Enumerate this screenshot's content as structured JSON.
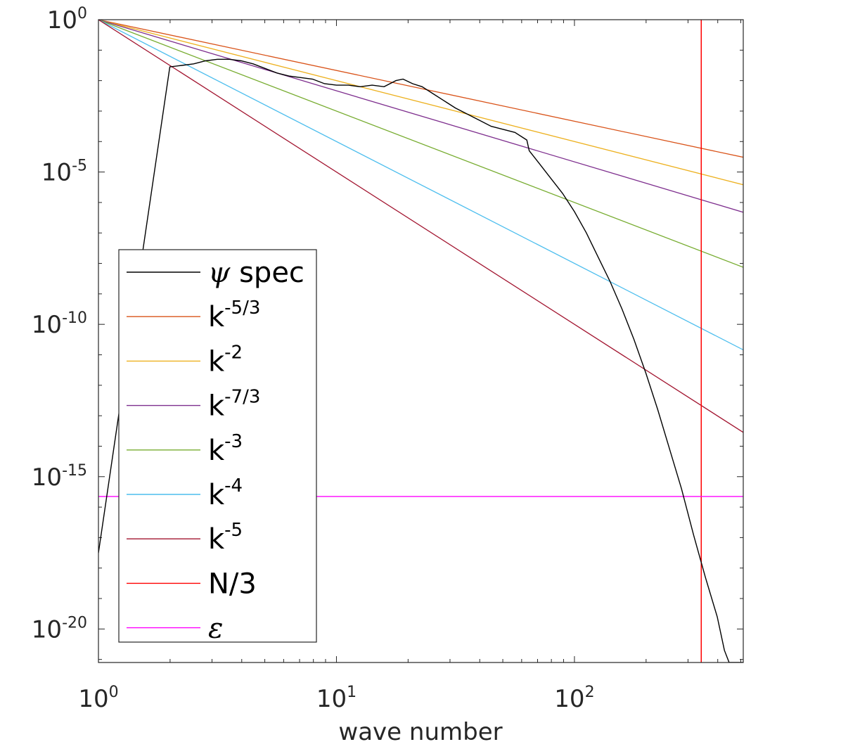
{
  "chart_data": {
    "type": "line",
    "title": "",
    "xlabel": "wave number",
    "ylabel": "",
    "xscale": "log",
    "yscale": "log",
    "xlim": [
      1,
      512
    ],
    "ylim_exp": [
      -21.1,
      0
    ],
    "x_ticks": [
      {
        "base": "10",
        "exp": "0",
        "value": 1
      },
      {
        "base": "10",
        "exp": "1",
        "value": 10
      },
      {
        "base": "10",
        "exp": "2",
        "value": 100
      }
    ],
    "y_ticks": [
      {
        "base": "10",
        "exp": "0",
        "value_exp": 0
      },
      {
        "base": "10",
        "exp": "-5",
        "value_exp": -5
      },
      {
        "base": "10",
        "exp": "-10",
        "value_exp": -10
      },
      {
        "base": "10",
        "exp": "-15",
        "value_exp": -15
      },
      {
        "base": "10",
        "exp": "-20",
        "value_exp": -20
      }
    ],
    "legend_position": "lower-left",
    "series": [
      {
        "name": "ψ spec",
        "label_main": "ψ",
        "label_rest": " spec",
        "label_sup": "",
        "math": true,
        "color": "#000000",
        "kind": "data",
        "points_log10": [
          [
            0.0,
            -17.5
          ],
          [
            0.3,
            -1.55
          ],
          [
            0.35,
            -1.5
          ],
          [
            0.4,
            -1.45
          ],
          [
            0.45,
            -1.35
          ],
          [
            0.5,
            -1.3
          ],
          [
            0.55,
            -1.3
          ],
          [
            0.6,
            -1.35
          ],
          [
            0.65,
            -1.45
          ],
          [
            0.7,
            -1.6
          ],
          [
            0.75,
            -1.75
          ],
          [
            0.8,
            -1.85
          ],
          [
            0.85,
            -1.9
          ],
          [
            0.9,
            -1.95
          ],
          [
            0.95,
            -2.1
          ],
          [
            1.0,
            -2.15
          ],
          [
            1.05,
            -2.15
          ],
          [
            1.1,
            -2.2
          ],
          [
            1.15,
            -2.15
          ],
          [
            1.2,
            -2.2
          ],
          [
            1.25,
            -2.0
          ],
          [
            1.28,
            -1.95
          ],
          [
            1.32,
            -2.1
          ],
          [
            1.36,
            -2.2
          ],
          [
            1.4,
            -2.4
          ],
          [
            1.45,
            -2.65
          ],
          [
            1.5,
            -2.9
          ],
          [
            1.55,
            -3.1
          ],
          [
            1.6,
            -3.3
          ],
          [
            1.65,
            -3.5
          ],
          [
            1.7,
            -3.6
          ],
          [
            1.75,
            -3.7
          ],
          [
            1.8,
            -3.95
          ],
          [
            1.81,
            -4.3
          ],
          [
            1.85,
            -4.7
          ],
          [
            1.9,
            -5.2
          ],
          [
            1.95,
            -5.7
          ],
          [
            2.0,
            -6.3
          ],
          [
            2.05,
            -7.0
          ],
          [
            2.1,
            -7.8
          ],
          [
            2.15,
            -8.6
          ],
          [
            2.2,
            -9.5
          ],
          [
            2.25,
            -10.5
          ],
          [
            2.3,
            -11.6
          ],
          [
            2.35,
            -12.8
          ],
          [
            2.4,
            -14.1
          ],
          [
            2.45,
            -15.4
          ],
          [
            2.5,
            -16.9
          ],
          [
            2.55,
            -18.3
          ],
          [
            2.6,
            -19.6
          ],
          [
            2.63,
            -20.7
          ],
          [
            2.65,
            -21.1
          ],
          [
            2.71,
            -21.1
          ]
        ]
      },
      {
        "name": "k-5/3",
        "label_main": "k",
        "label_rest": "",
        "label_sup": "-5/3",
        "math": false,
        "color": "#d95319",
        "kind": "powerlaw",
        "slope": -1.6667
      },
      {
        "name": "k-2",
        "label_main": "k",
        "label_rest": "",
        "label_sup": "-2",
        "math": false,
        "color": "#edb120",
        "kind": "powerlaw",
        "slope": -2
      },
      {
        "name": "k-7/3",
        "label_main": "k",
        "label_rest": "",
        "label_sup": "-7/3",
        "math": false,
        "color": "#7e2f8e",
        "kind": "powerlaw",
        "slope": -2.3333
      },
      {
        "name": "k-3",
        "label_main": "k",
        "label_rest": "",
        "label_sup": "-3",
        "math": false,
        "color": "#77ac30",
        "kind": "powerlaw",
        "slope": -3
      },
      {
        "name": "k-4",
        "label_main": "k",
        "label_rest": "",
        "label_sup": "-4",
        "math": false,
        "color": "#4dbeee",
        "kind": "powerlaw",
        "slope": -4
      },
      {
        "name": "k-5",
        "label_main": "k",
        "label_rest": "",
        "label_sup": "-5",
        "math": false,
        "color": "#a2142f",
        "kind": "powerlaw",
        "slope": -5
      },
      {
        "name": "N/3",
        "label_main": "N/3",
        "label_rest": "",
        "label_sup": "",
        "math": false,
        "color": "#ff0000",
        "kind": "vline",
        "x": 341
      },
      {
        "name": "ε",
        "label_main": "ε",
        "label_rest": "",
        "label_sup": "",
        "math": true,
        "color": "#ff00ff",
        "kind": "hline",
        "y_exp": -15.65
      }
    ]
  }
}
